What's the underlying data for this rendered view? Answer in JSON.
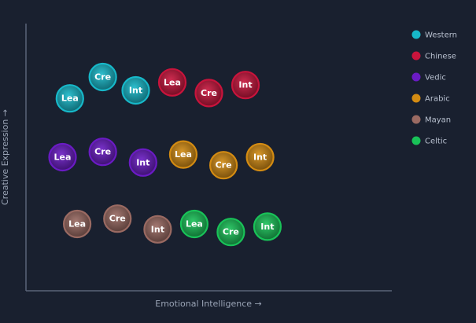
{
  "chart_data": {
    "type": "scatter",
    "title": "",
    "xlabel": "Emotional Intelligence →",
    "ylabel": "Creative Expression →",
    "xlim": [
      0,
      100
    ],
    "ylim": [
      0,
      100
    ],
    "grid": false,
    "legend_position": "right",
    "series": [
      {
        "name": "Western",
        "color": "#17b8c9",
        "points": [
          {
            "label": "Lea",
            "x": 12,
            "y": 72
          },
          {
            "label": "Cre",
            "x": 21,
            "y": 80
          },
          {
            "label": "Int",
            "x": 30,
            "y": 75
          }
        ]
      },
      {
        "name": "Chinese",
        "color": "#c8143c",
        "points": [
          {
            "label": "Lea",
            "x": 40,
            "y": 78
          },
          {
            "label": "Cre",
            "x": 50,
            "y": 74
          },
          {
            "label": "Int",
            "x": 60,
            "y": 77
          }
        ]
      },
      {
        "name": "Vedic",
        "color": "#6a1bc4",
        "points": [
          {
            "label": "Lea",
            "x": 10,
            "y": 50
          },
          {
            "label": "Cre",
            "x": 21,
            "y": 52
          },
          {
            "label": "Int",
            "x": 32,
            "y": 48
          }
        ]
      },
      {
        "name": "Arabic",
        "color": "#d38b12",
        "points": [
          {
            "label": "Lea",
            "x": 43,
            "y": 51
          },
          {
            "label": "Cre",
            "x": 54,
            "y": 47
          },
          {
            "label": "Int",
            "x": 64,
            "y": 50
          }
        ]
      },
      {
        "name": "Mayan",
        "color": "#9a6a62",
        "points": [
          {
            "label": "Lea",
            "x": 14,
            "y": 25
          },
          {
            "label": "Cre",
            "x": 25,
            "y": 27
          },
          {
            "label": "Int",
            "x": 36,
            "y": 23
          }
        ]
      },
      {
        "name": "Celtic",
        "color": "#19c258",
        "points": [
          {
            "label": "Lea",
            "x": 46,
            "y": 25
          },
          {
            "label": "Cre",
            "x": 56,
            "y": 22
          },
          {
            "label": "Int",
            "x": 66,
            "y": 24
          }
        ]
      }
    ]
  }
}
